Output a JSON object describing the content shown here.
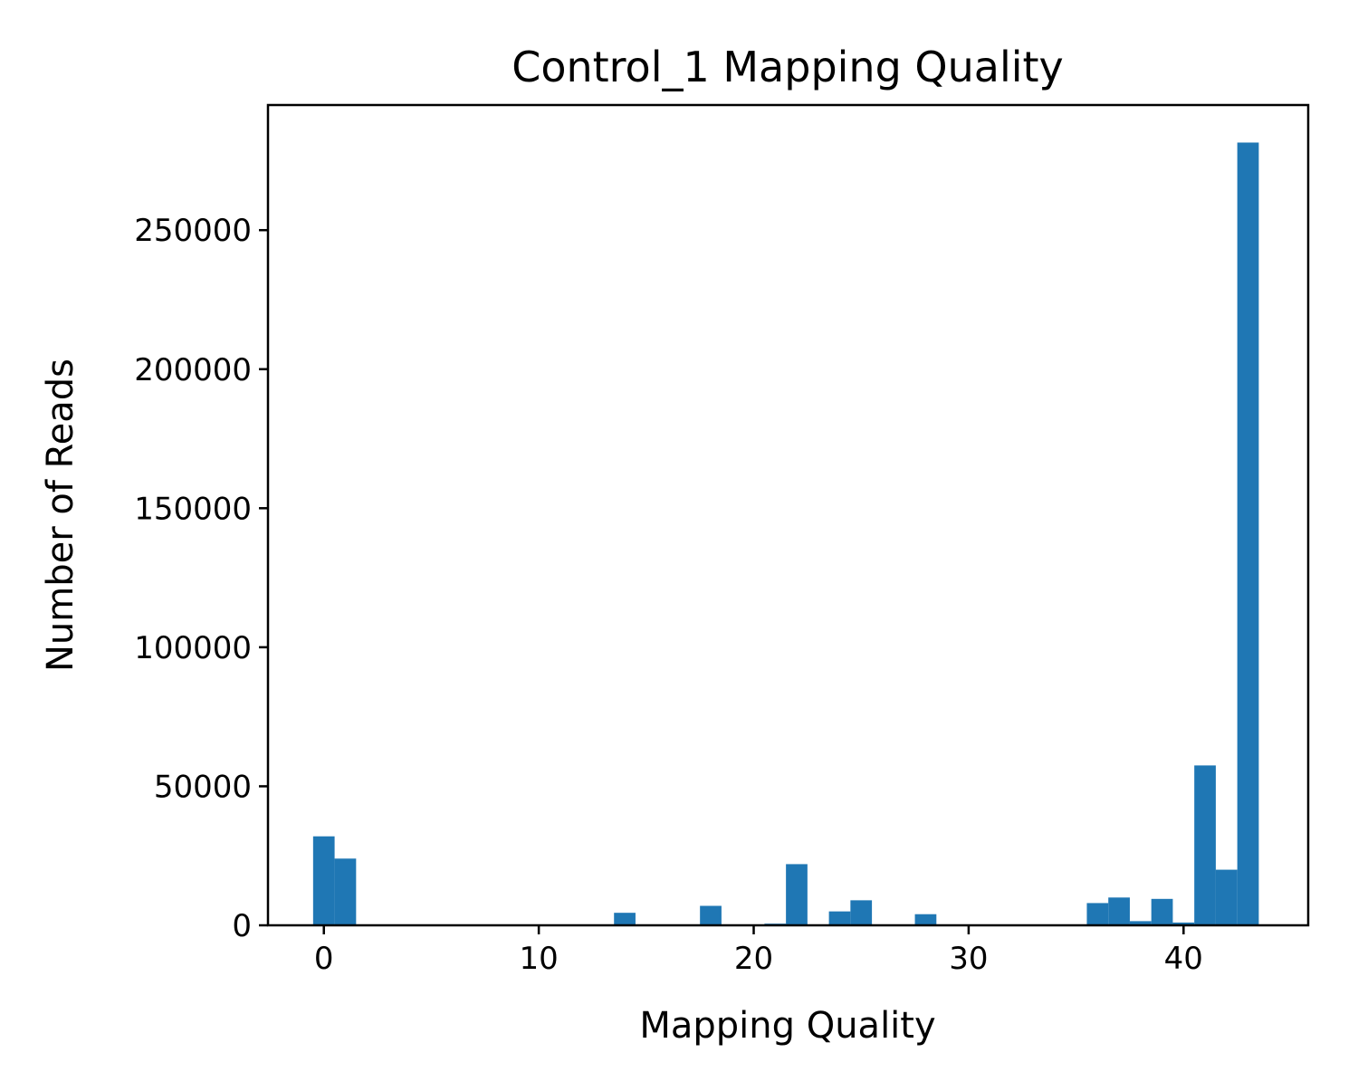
{
  "chart_data": {
    "type": "bar",
    "title": "Control_1 Mapping Quality",
    "xlabel": "Mapping Quality",
    "ylabel": "Number of Reads",
    "xlim": [
      -2.6,
      45.8
    ],
    "ylim": [
      0,
      295000
    ],
    "xticks": [
      0,
      10,
      20,
      30,
      40
    ],
    "yticks": [
      0,
      50000,
      100000,
      150000,
      200000,
      250000
    ],
    "bin_width": 1,
    "x": [
      0,
      1,
      14,
      18,
      21,
      22,
      24,
      25,
      28,
      36,
      37,
      38,
      39,
      40,
      41,
      42,
      43
    ],
    "values": [
      32000,
      24000,
      4500,
      7000,
      600,
      22000,
      5000,
      9000,
      4000,
      8000,
      10000,
      1500,
      9500,
      1000,
      57500,
      20000,
      281500
    ],
    "bar_color": "#1f77b4",
    "grid": false,
    "legend": "none"
  }
}
